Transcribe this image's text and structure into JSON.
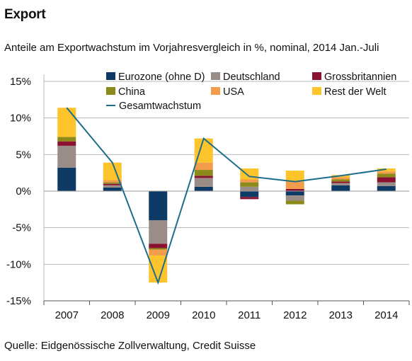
{
  "title": "Export",
  "subtitle": "Anteile am Exportwachstum im Vorjahresvergleich in %, nominal, 2014 Jan.-Juli",
  "source": "Quelle: Eidgenössische Zollverwaltung, Credit Suisse",
  "chart_data": {
    "type": "bar",
    "stacked": true,
    "categories": [
      "2007",
      "2008",
      "2009",
      "2010",
      "2011",
      "2012",
      "2013",
      "2014"
    ],
    "ylim": [
      -15,
      15
    ],
    "yticks": [
      15,
      10,
      5,
      0,
      -5,
      -10,
      -15
    ],
    "ytick_labels": [
      "15%",
      "10%",
      "5%",
      "0%",
      "-5%",
      "-10%",
      "-15%"
    ],
    "grid": "horizontal",
    "legend_position": "top",
    "series": [
      {
        "name": "Eurozone (ohne D)",
        "color": "#0e3a66",
        "values": [
          3.2,
          0.5,
          -4.0,
          0.6,
          -0.8,
          -0.6,
          0.8,
          0.7
        ]
      },
      {
        "name": "Deutschland",
        "color": "#9a8c86",
        "values": [
          3.0,
          0.3,
          -3.2,
          1.2,
          0.6,
          -0.7,
          0.3,
          0.5
        ]
      },
      {
        "name": "Grossbritannien",
        "color": "#8a1230",
        "values": [
          0.6,
          0.2,
          -0.6,
          0.3,
          -0.3,
          0.3,
          0.2,
          0.7
        ]
      },
      {
        "name": "China",
        "color": "#8c8a1a",
        "values": [
          0.6,
          0.2,
          -0.2,
          0.8,
          0.6,
          -0.5,
          0.3,
          0.5
        ]
      },
      {
        "name": "USA",
        "color": "#f39d4c",
        "values": [
          0.0,
          0.3,
          -0.8,
          1.0,
          0.4,
          1.0,
          0.3,
          0.3
        ]
      },
      {
        "name": "Rest der Welt",
        "color": "#fdc42b",
        "values": [
          4.0,
          2.4,
          -3.7,
          3.3,
          1.5,
          1.5,
          0.3,
          0.4
        ]
      }
    ],
    "line": {
      "name": "Gesamtwachstum",
      "color": "#1d6e8c",
      "values": [
        11.4,
        3.9,
        -12.5,
        7.2,
        2.0,
        1.3,
        2.1,
        3.0
      ]
    }
  }
}
